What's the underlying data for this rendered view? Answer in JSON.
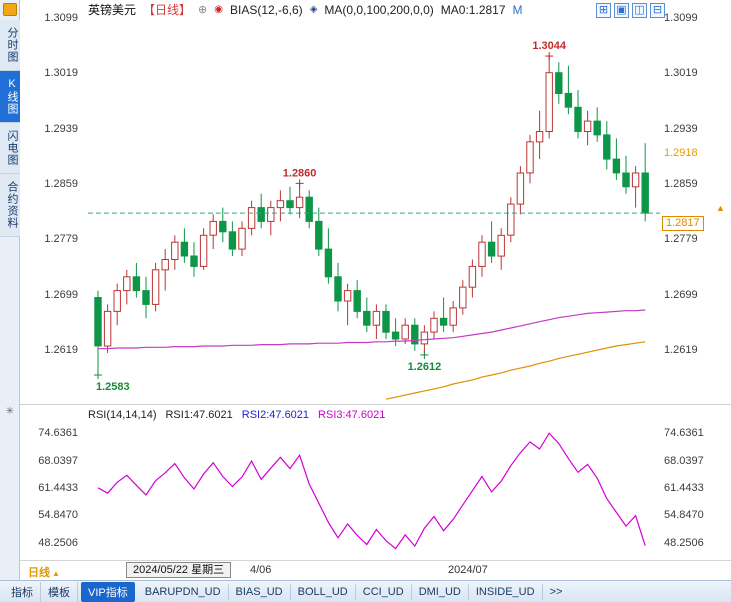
{
  "sidebar": {
    "items": [
      "分时图",
      "K线图",
      "闪电图",
      "合约资料"
    ]
  },
  "header": {
    "symbol": "英镑美元",
    "period_tag": "【日线】",
    "bias": "BIAS(12,-6,6)",
    "ma": "MA(0,0,100,200,0,0)",
    "ma0": "MA0:1.2817",
    "m": "M"
  },
  "icons": {
    "expand": "⊕",
    "bias_dot": "◉",
    "ma_diamond": "◈",
    "settings": "✳",
    "up_triangle": "▲",
    "layout": [
      {
        "name": "layout-grid-icon",
        "glyph": "⊞"
      },
      {
        "name": "layout-single-icon",
        "glyph": "▣"
      },
      {
        "name": "layout-two-col-icon",
        "glyph": "◫"
      },
      {
        "name": "layout-two-row-icon",
        "glyph": "⊟"
      }
    ]
  },
  "rsi_header": {
    "name": "RSI(14,14,14)",
    "rsi1": "RSI1:47.6021",
    "rsi2": "RSI2:47.6021",
    "rsi3": "RSI3:47.6021"
  },
  "price_tags": {
    "alert": "1.2918",
    "last": "1.2817"
  },
  "xaxis": {
    "period": "日线",
    "crosshair_date": "2024/05/22 星期三",
    "tick1": "4/06",
    "tick2": "2024/07"
  },
  "toolbar": {
    "tabs": [
      "指标",
      "模板",
      "VIP指标",
      "BARUPDN_UD",
      "BIAS_UD",
      "BOLL_UD",
      "CCI_UD",
      "DMI_UD",
      "INSIDE_UD",
      ">>"
    ]
  },
  "chart_data": {
    "type": "candlestick",
    "title": "英镑美元 日线",
    "x_labels": [
      "4/06",
      "2024/07"
    ],
    "main": {
      "y_ticks": [
        1.3099,
        1.3019,
        1.2939,
        1.2859,
        1.2779,
        1.2699,
        1.2619
      ],
      "price_top": 1.3099,
      "price_bottom": 1.2544,
      "last_price": 1.2817,
      "alert_price": 1.2918,
      "colors": {
        "up": "#b93636",
        "down": "#0e9648",
        "ma_purple": "#c43cc4",
        "ma_orange": "#df9000",
        "last_line": "#2aa88f"
      },
      "candles": [
        [
          1.2695,
          1.2705,
          1.2583,
          1.2625
        ],
        [
          1.2625,
          1.2685,
          1.2615,
          1.2675
        ],
        [
          1.2675,
          1.2715,
          1.2655,
          1.2705
        ],
        [
          1.2705,
          1.2735,
          1.2685,
          1.2725
        ],
        [
          1.2725,
          1.2745,
          1.2695,
          1.2705
        ],
        [
          1.2705,
          1.2725,
          1.2665,
          1.2685
        ],
        [
          1.2685,
          1.2745,
          1.2675,
          1.2735
        ],
        [
          1.2735,
          1.2765,
          1.2705,
          1.275
        ],
        [
          1.275,
          1.2785,
          1.2735,
          1.2775
        ],
        [
          1.2775,
          1.2795,
          1.2745,
          1.2755
        ],
        [
          1.2755,
          1.2775,
          1.2725,
          1.274
        ],
        [
          1.274,
          1.2795,
          1.2735,
          1.2785
        ],
        [
          1.2785,
          1.2815,
          1.2765,
          1.2805
        ],
        [
          1.2805,
          1.2825,
          1.2775,
          1.279
        ],
        [
          1.279,
          1.2805,
          1.2755,
          1.2765
        ],
        [
          1.2765,
          1.2805,
          1.2755,
          1.2795
        ],
        [
          1.2795,
          1.2835,
          1.2785,
          1.2825
        ],
        [
          1.2825,
          1.2845,
          1.2795,
          1.2805
        ],
        [
          1.2805,
          1.2835,
          1.2785,
          1.2825
        ],
        [
          1.2825,
          1.285,
          1.2805,
          1.2835
        ],
        [
          1.2835,
          1.2855,
          1.2815,
          1.2825
        ],
        [
          1.2825,
          1.286,
          1.281,
          1.284
        ],
        [
          1.284,
          1.285,
          1.2795,
          1.2805
        ],
        [
          1.2805,
          1.2825,
          1.2755,
          1.2765
        ],
        [
          1.2765,
          1.2795,
          1.2715,
          1.2725
        ],
        [
          1.2725,
          1.2745,
          1.2675,
          1.269
        ],
        [
          1.269,
          1.2715,
          1.2655,
          1.2705
        ],
        [
          1.2705,
          1.272,
          1.2665,
          1.2675
        ],
        [
          1.2675,
          1.2695,
          1.2645,
          1.2655
        ],
        [
          1.2655,
          1.2685,
          1.2635,
          1.2675
        ],
        [
          1.2675,
          1.2685,
          1.2635,
          1.2645
        ],
        [
          1.2645,
          1.2665,
          1.2625,
          1.2635
        ],
        [
          1.2635,
          1.2665,
          1.2628,
          1.2655
        ],
        [
          1.2655,
          1.2665,
          1.2618,
          1.2628
        ],
        [
          1.2628,
          1.2655,
          1.2612,
          1.2645
        ],
        [
          1.2645,
          1.2675,
          1.2635,
          1.2665
        ],
        [
          1.2665,
          1.2695,
          1.2645,
          1.2655
        ],
        [
          1.2655,
          1.269,
          1.2645,
          1.268
        ],
        [
          1.268,
          1.272,
          1.267,
          1.271
        ],
        [
          1.271,
          1.275,
          1.2695,
          1.274
        ],
        [
          1.274,
          1.2785,
          1.2725,
          1.2775
        ],
        [
          1.2775,
          1.2805,
          1.2745,
          1.2755
        ],
        [
          1.2755,
          1.2795,
          1.2735,
          1.2785
        ],
        [
          1.2785,
          1.284,
          1.2775,
          1.283
        ],
        [
          1.283,
          1.2885,
          1.2815,
          1.2875
        ],
        [
          1.2875,
          1.293,
          1.286,
          1.292
        ],
        [
          1.292,
          1.2965,
          1.2895,
          1.2935
        ],
        [
          1.2935,
          1.3044,
          1.2925,
          1.302
        ],
        [
          1.302,
          1.3035,
          1.2975,
          1.299
        ],
        [
          1.299,
          1.303,
          1.296,
          1.297
        ],
        [
          1.297,
          1.2995,
          1.2925,
          1.2935
        ],
        [
          1.2935,
          1.2965,
          1.2915,
          1.295
        ],
        [
          1.295,
          1.297,
          1.292,
          1.293
        ],
        [
          1.293,
          1.295,
          1.288,
          1.2895
        ],
        [
          1.2895,
          1.2925,
          1.2865,
          1.2875
        ],
        [
          1.2875,
          1.29,
          1.2845,
          1.2855
        ],
        [
          1.2855,
          1.2885,
          1.2825,
          1.2875
        ],
        [
          1.2875,
          1.2918,
          1.2805,
          1.2817
        ]
      ],
      "ma_purple": [
        1.2621,
        1.2621,
        1.2622,
        1.2622,
        1.2622,
        1.2623,
        1.2623,
        1.2623,
        1.2624,
        1.2624,
        1.2624,
        1.2625,
        1.2625,
        1.2625,
        1.2626,
        1.2626,
        1.2626,
        1.2627,
        1.2627,
        1.2627,
        1.2628,
        1.2628,
        1.2628,
        1.2629,
        1.2629,
        1.2629,
        1.263,
        1.263,
        1.263,
        1.2631,
        1.2631,
        1.2632,
        1.2632,
        1.2633,
        1.2634,
        1.2635,
        1.2636,
        1.2637,
        1.2639,
        1.2641,
        1.2643,
        1.2645,
        1.2648,
        1.2651,
        1.2654,
        1.2657,
        1.266,
        1.2663,
        1.2666,
        1.2668,
        1.267,
        1.2672,
        1.2673,
        1.2674,
        1.2675,
        1.2676,
        1.2676,
        1.2677
      ],
      "ma_orange": [
        null,
        null,
        null,
        null,
        null,
        null,
        null,
        null,
        null,
        null,
        null,
        null,
        null,
        null,
        null,
        null,
        null,
        null,
        null,
        null,
        null,
        null,
        null,
        null,
        null,
        null,
        null,
        null,
        null,
        null,
        1.2548,
        1.2551,
        1.2554,
        1.2557,
        1.256,
        1.2563,
        1.2566,
        1.257,
        1.2573,
        1.2576,
        1.258,
        1.2583,
        1.2586,
        1.259,
        1.2593,
        1.2596,
        1.26,
        1.2603,
        1.2607,
        1.261,
        1.2613,
        1.2616,
        1.2619,
        1.2622,
        1.2625,
        1.2627,
        1.2629,
        1.2631
      ],
      "annotations": [
        {
          "index": 47,
          "price": 1.3044,
          "text": "1.3044",
          "color": "#c22a2a",
          "pos": "above",
          "anchor": "middle"
        },
        {
          "index": 21,
          "price": 1.286,
          "text": "1.2860",
          "color": "#c22a2a",
          "pos": "above",
          "anchor": "middle"
        },
        {
          "index": 34,
          "price": 1.2612,
          "text": "1.2612",
          "color": "#1a8a3a",
          "pos": "below",
          "anchor": "middle"
        },
        {
          "index": 0,
          "price": 1.2583,
          "text": "1.2583",
          "color": "#1a8a3a",
          "pos": "below",
          "anchor": "start"
        }
      ]
    },
    "rsi": {
      "label": "RSI(14,14,14)",
      "current": 47.6021,
      "y_ticks": [
        74.6361,
        68.0397,
        61.4433,
        54.847,
        48.2506
      ],
      "color": "#d400d4",
      "values": [
        61.5,
        60.2,
        62.8,
        64.5,
        62.1,
        59.8,
        63.2,
        65.1,
        67.3,
        63.9,
        61.2,
        64.8,
        67.5,
        64.2,
        61.8,
        64.1,
        67.9,
        63.5,
        66.2,
        68.8,
        66.1,
        69.3,
        62.4,
        57.8,
        53.2,
        49.5,
        52.8,
        50.1,
        47.9,
        51.5,
        48.8,
        46.9,
        50.2,
        47.5,
        51.8,
        54.6,
        51.2,
        53.9,
        57.4,
        60.8,
        64.2,
        60.5,
        63.1,
        66.8,
        69.9,
        72.5,
        70.8,
        74.6,
        72.1,
        68.5,
        65.2,
        67.1,
        63.8,
        58.9,
        55.6,
        52.3,
        54.8,
        47.6
      ]
    }
  }
}
